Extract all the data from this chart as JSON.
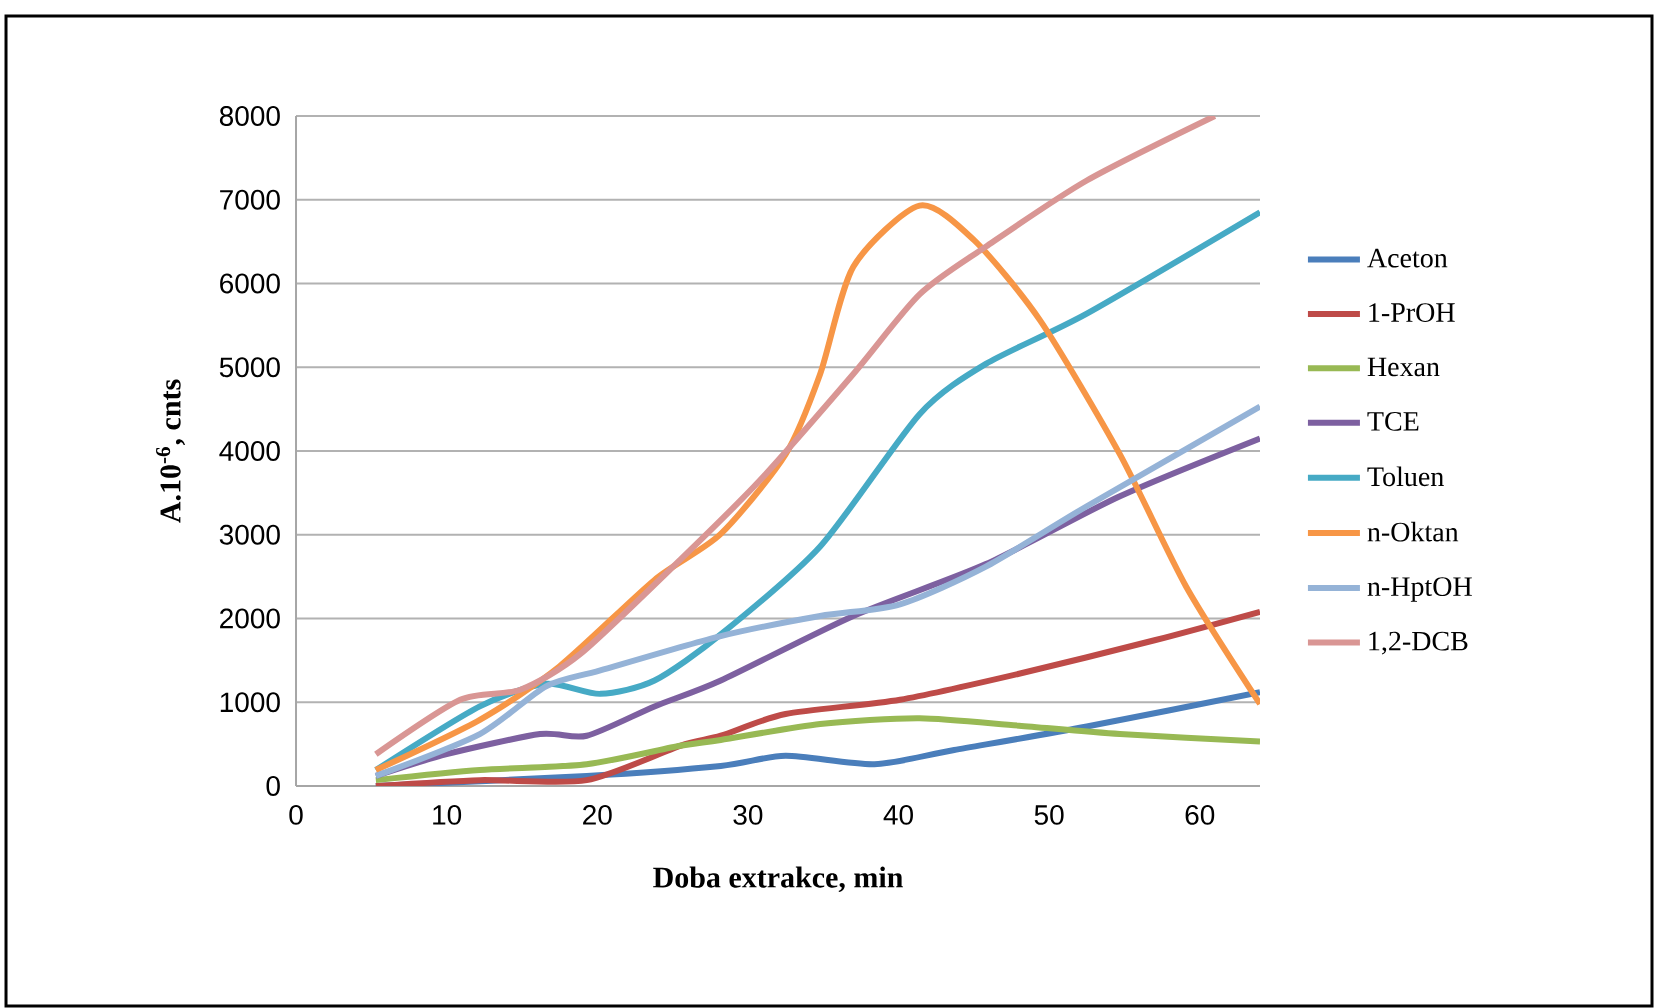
{
  "chart_data": {
    "type": "line",
    "xlabel": "Doba extrakce, min",
    "ylabel": "A.10$^{-6}$, cnts",
    "xlim": [
      0,
      64
    ],
    "xticks": [
      0,
      10,
      20,
      30,
      40,
      50,
      60
    ],
    "ylim": [
      0,
      8000
    ],
    "yticks": [
      0,
      1000,
      2000,
      3000,
      4000,
      5000,
      6000,
      7000,
      8000
    ],
    "grid": "y",
    "legend": "right",
    "marker": "none",
    "line_style": "solid",
    "series": [
      {
        "name": "Aceton",
        "color": "#4a7ebb",
        "x": [
          5.3,
          19.3,
          28.2,
          32.5,
          38.4,
          43.7,
          52.5,
          64
        ],
        "values": [
          0,
          120,
          240,
          360,
          260,
          430,
          710,
          1120
        ]
      },
      {
        "name": "1-PrOH",
        "color": "#be4b48",
        "x": [
          5.3,
          12.2,
          19.3,
          25.5,
          28.2,
          32.5,
          40.1,
          48,
          57,
          64
        ],
        "values": [
          0,
          70,
          70,
          480,
          600,
          860,
          1030,
          1340,
          1740,
          2080
        ]
      },
      {
        "name": "Hexan",
        "color": "#98b954",
        "x": [
          5.3,
          12.2,
          19.3,
          25.5,
          28.2,
          34.8,
          41.4,
          48,
          54.7,
          64
        ],
        "values": [
          70,
          190,
          260,
          480,
          550,
          740,
          810,
          720,
          620,
          530
        ]
      },
      {
        "name": "TCE",
        "color": "#7d60a0",
        "x": [
          5.3,
          10,
          16.2,
          19.3,
          23.8,
          28.2,
          37,
          45.8,
          54.7,
          64
        ],
        "values": [
          120,
          380,
          620,
          600,
          950,
          1260,
          2030,
          2650,
          3460,
          4150
        ]
      },
      {
        "name": "Toluen",
        "color": "#46aac5",
        "x": [
          5.3,
          12.2,
          16.6,
          20.2,
          23.8,
          28.2,
          34.8,
          41.4,
          45.8,
          52.5,
          64
        ],
        "values": [
          190,
          950,
          1220,
          1100,
          1260,
          1810,
          2860,
          4440,
          5040,
          5640,
          6850
        ]
      },
      {
        "name": "n-Oktan",
        "color": "#f79646",
        "x": [
          5.3,
          12.2,
          17.5,
          23.8,
          28.2,
          32.5,
          34.8,
          37,
          41.4,
          45,
          49.4,
          54.7,
          59.1,
          64
        ],
        "values": [
          190,
          790,
          1430,
          2460,
          3010,
          3960,
          4920,
          6200,
          6930,
          6520,
          5560,
          3960,
          2380,
          980
        ]
      },
      {
        "name": "n-HptOH",
        "color": "#95b3d7",
        "x": [
          5.3,
          12.2,
          16.6,
          20.2,
          28.2,
          34.8,
          40.1,
          45.8,
          52.5,
          64
        ],
        "values": [
          120,
          620,
          1190,
          1380,
          1790,
          2030,
          2170,
          2620,
          3340,
          4530
        ]
      },
      {
        "name": "1,2-DCB",
        "color": "#d99694",
        "x": [
          5.3,
          10.9,
          14.9,
          18.9,
          25.5,
          30.8,
          37,
          41.4,
          45.8,
          52.5,
          61
        ],
        "values": [
          380,
          1030,
          1150,
          1580,
          2700,
          3650,
          4920,
          5870,
          6440,
          7230,
          8000
        ]
      }
    ]
  }
}
